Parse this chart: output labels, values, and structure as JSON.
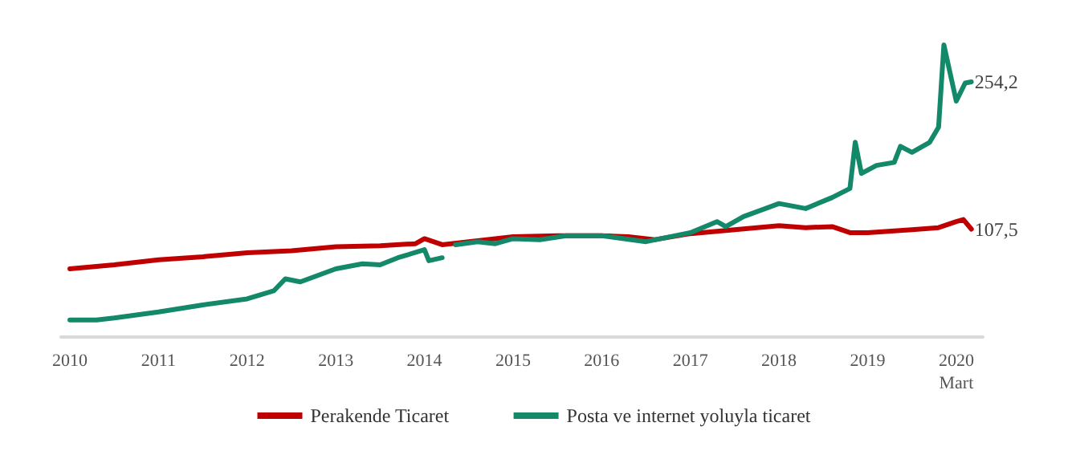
{
  "chart_data": {
    "type": "line",
    "xlim": [
      2009.9,
      2020.3
    ],
    "xticks": [
      2010,
      2011,
      2012,
      2013,
      2014,
      2015,
      2016,
      2017,
      2018,
      2019,
      {
        "value": 2020,
        "label": "2020\nMart"
      }
    ],
    "tick_labels": "x",
    "grid": false,
    "legend": "bottom",
    "marker": "none",
    "line_style": "solid",
    "series": [
      {
        "name": "Perakende Ticaret",
        "color": "#c00000",
        "x": [
          2010,
          2010.5,
          2011,
          2011.5,
          2012,
          2012.5,
          2013,
          2013.5,
          2013.9,
          2014.0,
          2014.2,
          2014.6,
          2015,
          2015.5,
          2016,
          2016.3,
          2016.6,
          2017,
          2017.5,
          2018,
          2018.3,
          2018.6,
          2018.8,
          2019,
          2019.5,
          2019.8,
          2020,
          2020.08,
          2020.17
        ],
        "values": [
          68,
          72,
          77,
          80,
          84,
          86,
          90,
          91,
          93,
          98,
          92,
          96,
          100,
          101,
          101,
          100,
          97,
          103,
          107,
          111,
          109,
          110,
          104,
          104,
          107,
          109,
          115,
          117,
          107.5
        ],
        "value_labels": [
          null,
          null,
          null,
          null,
          null,
          null,
          null,
          null,
          null,
          null,
          null,
          null,
          null,
          null,
          null,
          null,
          null,
          null,
          null,
          null,
          null,
          null,
          null,
          null,
          null,
          null,
          null,
          null,
          "107,5"
        ]
      },
      {
        "name": "Posta ve internet yoluyla ticaret",
        "color": "#13896a",
        "x": [
          2010,
          2010.3,
          2010.5,
          2011,
          2011.5,
          2012,
          2012.3,
          2012.43,
          2012.6,
          2013,
          2013.3,
          2013.5,
          2013.7,
          2014,
          2014.05,
          2014.2,
          2014.25,
          2014.35,
          2014.6,
          2014.8,
          2015,
          2015.3,
          2015.6,
          2016,
          2016.5,
          2017,
          2017.3,
          2017.4,
          2017.6,
          2018,
          2018.3,
          2018.6,
          2018.8,
          2018.86,
          2018.93,
          2019.1,
          2019.3,
          2019.37,
          2019.5,
          2019.7,
          2019.8,
          2019.86,
          2020,
          2020.1,
          2020.17
        ],
        "values": [
          17,
          17,
          19,
          25,
          32,
          38,
          46,
          58,
          55,
          68,
          73,
          72,
          79,
          87,
          76,
          79,
          null,
          92,
          95,
          93,
          98,
          97,
          101,
          101,
          95,
          104,
          115,
          110,
          120,
          133,
          128,
          139,
          148,
          194,
          163,
          171,
          174,
          190,
          184,
          194,
          209,
          291,
          235,
          253,
          254.2
        ],
        "value_labels": [
          null,
          null,
          null,
          null,
          null,
          null,
          null,
          null,
          null,
          null,
          null,
          null,
          null,
          null,
          null,
          null,
          null,
          null,
          null,
          null,
          null,
          null,
          null,
          null,
          null,
          null,
          null,
          null,
          null,
          null,
          null,
          null,
          null,
          null,
          null,
          null,
          null,
          null,
          null,
          null,
          null,
          null,
          null,
          null,
          "254,2"
        ]
      }
    ]
  }
}
